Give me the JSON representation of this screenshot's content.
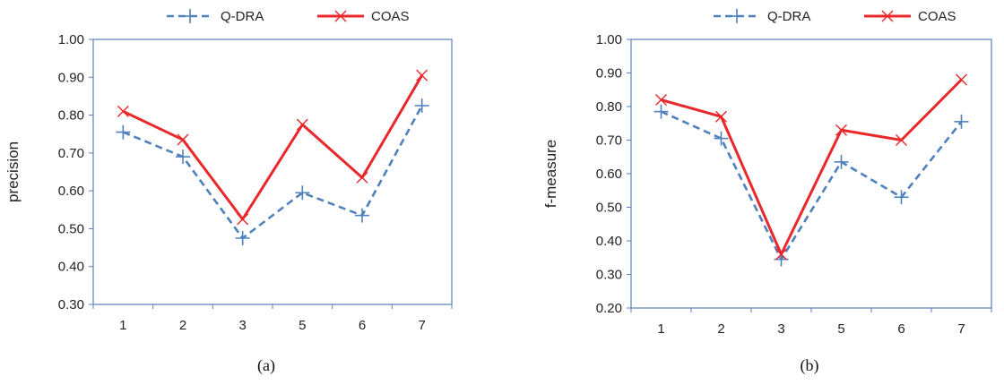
{
  "chart_data": [
    {
      "type": "line",
      "title": "",
      "caption": "(a)",
      "xlabel": "",
      "ylabel": "precision",
      "categories": [
        "1",
        "2",
        "3",
        "5",
        "6",
        "7"
      ],
      "ylim": [
        0.3,
        1.0
      ],
      "yticks": [
        "0.30",
        "0.40",
        "0.50",
        "0.60",
        "0.70",
        "0.80",
        "0.90",
        "1.00"
      ],
      "grid": false,
      "legend": "top",
      "series": [
        {
          "name": "Q-DRA",
          "color": "#4f81bd",
          "style": "dashed",
          "marker": "plus",
          "values": [
            0.755,
            0.69,
            0.475,
            0.595,
            0.535,
            0.825
          ]
        },
        {
          "name": "COAS",
          "color": "#e8282b",
          "style": "solid",
          "marker": "x",
          "values": [
            0.81,
            0.735,
            0.525,
            0.775,
            0.635,
            0.905
          ]
        }
      ]
    },
    {
      "type": "line",
      "title": "",
      "caption": "(b)",
      "xlabel": "",
      "ylabel": "f-measure",
      "categories": [
        "1",
        "2",
        "3",
        "5",
        "6",
        "7"
      ],
      "ylim": [
        0.2,
        1.0
      ],
      "yticks": [
        "0.20",
        "0.30",
        "0.40",
        "0.50",
        "0.60",
        "0.70",
        "0.80",
        "0.90",
        "1.00"
      ],
      "grid": false,
      "legend": "top",
      "series": [
        {
          "name": "Q-DRA",
          "color": "#4f81bd",
          "style": "dashed",
          "marker": "plus",
          "values": [
            0.785,
            0.705,
            0.345,
            0.635,
            0.53,
            0.755
          ]
        },
        {
          "name": "COAS",
          "color": "#e8282b",
          "style": "solid",
          "marker": "x",
          "values": [
            0.82,
            0.77,
            0.36,
            0.73,
            0.7,
            0.88
          ]
        }
      ]
    }
  ]
}
